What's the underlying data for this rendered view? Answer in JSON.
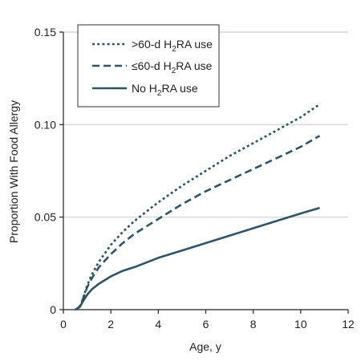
{
  "chart_data": {
    "type": "line",
    "title": "",
    "xlabel": "Age, y",
    "ylabel": "Proportion With Food Allergy",
    "xlim": [
      0,
      12
    ],
    "ylim": [
      0,
      0.15
    ],
    "xticks": [
      0,
      2,
      4,
      6,
      8,
      10,
      12
    ],
    "yticks": [
      0,
      0.05,
      0.1,
      0.15
    ],
    "ytick_labels": [
      "0",
      "0.05",
      "0.10",
      "0.15"
    ],
    "grid": "horizontal",
    "legend_position": "top-left",
    "colors": {
      "series": "#2e5566",
      "grid": "#d0d0d0",
      "axis": "#222222"
    },
    "series": [
      {
        "name_prefix": ">60-d H",
        "name_sub": "2",
        "name_suffix": "RA use",
        "style": "dotted",
        "x": [
          0.5,
          0.6,
          0.7,
          0.8,
          1.0,
          1.2,
          1.5,
          2.0,
          2.5,
          3.0,
          4.0,
          5.0,
          6.0,
          7.0,
          8.0,
          9.0,
          10.0,
          10.8
        ],
        "y": [
          0.0,
          0.0008,
          0.002,
          0.005,
          0.013,
          0.019,
          0.026,
          0.035,
          0.042,
          0.048,
          0.058,
          0.067,
          0.075,
          0.083,
          0.09,
          0.097,
          0.104,
          0.111
        ]
      },
      {
        "name_prefix": "≤60-d H",
        "name_sub": "2",
        "name_suffix": "RA use",
        "style": "dashed",
        "x": [
          0.5,
          0.6,
          0.7,
          0.8,
          1.0,
          1.2,
          1.5,
          2.0,
          2.5,
          3.0,
          4.0,
          5.0,
          6.0,
          7.0,
          8.0,
          9.0,
          10.0,
          10.8
        ],
        "y": [
          0.0,
          0.0008,
          0.002,
          0.005,
          0.012,
          0.017,
          0.023,
          0.03,
          0.036,
          0.041,
          0.049,
          0.057,
          0.064,
          0.07,
          0.076,
          0.082,
          0.088,
          0.094
        ]
      },
      {
        "name_prefix": "No H",
        "name_sub": "2",
        "name_suffix": "RA use",
        "style": "solid",
        "x": [
          0.5,
          0.6,
          0.7,
          0.8,
          1.0,
          1.2,
          1.5,
          2.0,
          2.5,
          3.0,
          4.0,
          5.0,
          6.0,
          7.0,
          8.0,
          9.0,
          10.0,
          10.8
        ],
        "y": [
          0.0,
          0.0006,
          0.0015,
          0.004,
          0.008,
          0.011,
          0.014,
          0.018,
          0.021,
          0.023,
          0.028,
          0.032,
          0.036,
          0.04,
          0.044,
          0.048,
          0.052,
          0.055
        ]
      }
    ]
  }
}
